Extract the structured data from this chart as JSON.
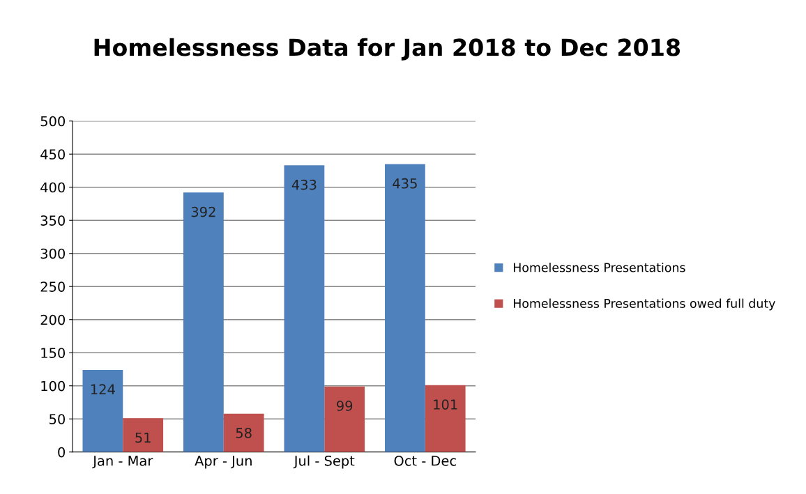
{
  "chart_data": {
    "type": "bar",
    "title": "Homelessness Data for Jan 2018 to Dec 2018",
    "categories": [
      "Jan - Mar",
      "Apr - Jun",
      "Jul - Sept",
      "Oct - Dec"
    ],
    "series": [
      {
        "name": "Homelessness Presentations",
        "color": "#4f81bd",
        "values": [
          124,
          392,
          433,
          435
        ]
      },
      {
        "name": "Homelessness Presentations owed full duty",
        "color": "#c0504d",
        "values": [
          51,
          58,
          99,
          101
        ]
      }
    ],
    "ylim": [
      0,
      500
    ],
    "yticks": [
      0,
      50,
      100,
      150,
      200,
      250,
      300,
      350,
      400,
      450,
      500
    ],
    "grid": "y",
    "legend": "right",
    "data_labels": true
  }
}
